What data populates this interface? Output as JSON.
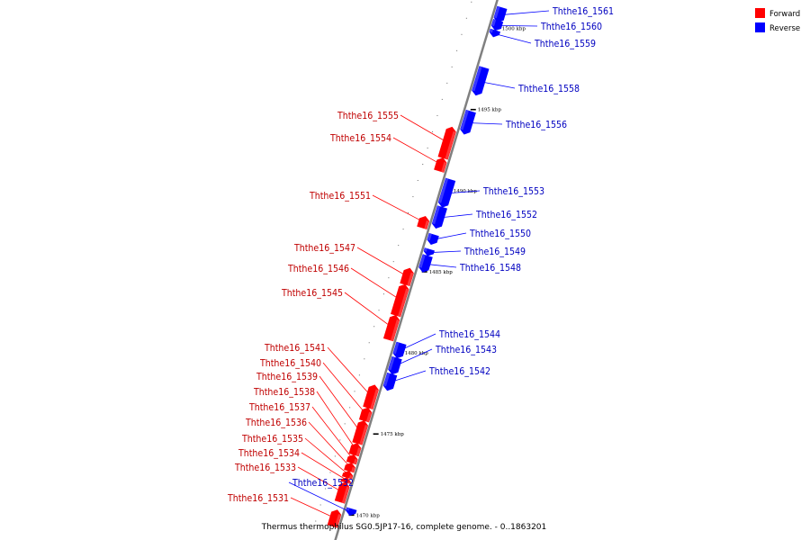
{
  "legend": {
    "forward": {
      "label": "Forward",
      "color": "#ff0000"
    },
    "reverse": {
      "label": "Reverse",
      "color": "#0000ff"
    }
  },
  "caption": "Thermus thermophilus SG0.5JP17-16, complete genome. - 0..1863201",
  "scale": {
    "unit": "kbp",
    "start": 1469.0,
    "end": 1501.3
  },
  "ticks": [
    {
      "label": "1500 kbp",
      "kbp": 1500
    },
    {
      "label": "1495 kbp",
      "kbp": 1495
    },
    {
      "label": "1490 kbp",
      "kbp": 1490
    },
    {
      "label": "1485 kbp",
      "kbp": 1485
    },
    {
      "label": "1480 kbp",
      "kbp": 1480
    },
    {
      "label": "1475 kbp",
      "kbp": 1475
    },
    {
      "label": "1470 kbp",
      "kbp": 1470
    }
  ],
  "genes": [
    {
      "name": "Ththe16_1561",
      "strand": "reverse",
      "start": 1500.3,
      "end": 1501.2
    },
    {
      "name": "Ththe16_1560",
      "strand": "reverse",
      "start": 1499.8,
      "end": 1500.4
    },
    {
      "name": "Ththe16_1559",
      "strand": "reverse",
      "start": 1499.4,
      "end": 1499.8
    },
    {
      "name": "Ththe16_1558",
      "strand": "reverse",
      "start": 1495.8,
      "end": 1497.5
    },
    {
      "name": "Ththe16_1556",
      "strand": "reverse",
      "start": 1493.4,
      "end": 1494.8
    },
    {
      "name": "Ththe16_1555",
      "strand": "forward",
      "start": 1491.7,
      "end": 1493.6
    },
    {
      "name": "Ththe16_1554",
      "strand": "forward",
      "start": 1490.9,
      "end": 1491.7
    },
    {
      "name": "Ththe16_1553",
      "strand": "reverse",
      "start": 1488.9,
      "end": 1490.6
    },
    {
      "name": "Ththe16_1552",
      "strand": "reverse",
      "start": 1487.6,
      "end": 1488.9
    },
    {
      "name": "Ththe16_1551",
      "strand": "forward",
      "start": 1487.4,
      "end": 1488.1
    },
    {
      "name": "Ththe16_1550",
      "strand": "reverse",
      "start": 1486.6,
      "end": 1487.2
    },
    {
      "name": "Ththe16_1549",
      "strand": "reverse",
      "start": 1485.9,
      "end": 1486.3
    },
    {
      "name": "Ththe16_1548",
      "strand": "reverse",
      "start": 1484.9,
      "end": 1485.9
    },
    {
      "name": "Ththe16_1547",
      "strand": "forward",
      "start": 1483.9,
      "end": 1484.9
    },
    {
      "name": "Ththe16_1546",
      "strand": "forward",
      "start": 1482.0,
      "end": 1483.9
    },
    {
      "name": "Ththe16_1545",
      "strand": "forward",
      "start": 1480.5,
      "end": 1482.0
    },
    {
      "name": "Ththe16_1544",
      "strand": "reverse",
      "start": 1479.6,
      "end": 1480.5
    },
    {
      "name": "Ththe16_1543",
      "strand": "reverse",
      "start": 1478.6,
      "end": 1479.6
    },
    {
      "name": "Ththe16_1542",
      "strand": "reverse",
      "start": 1477.6,
      "end": 1478.6
    },
    {
      "name": "Ththe16_1541",
      "strand": "forward",
      "start": 1476.3,
      "end": 1477.7
    },
    {
      "name": "Ththe16_1540",
      "strand": "forward",
      "start": 1475.5,
      "end": 1476.3
    },
    {
      "name": "Ththe16_1539",
      "strand": "forward",
      "start": 1474.1,
      "end": 1475.5
    },
    {
      "name": "Ththe16_1538",
      "strand": "forward",
      "start": 1473.4,
      "end": 1474.1
    },
    {
      "name": "Ththe16_1537",
      "strand": "forward",
      "start": 1472.9,
      "end": 1473.4
    },
    {
      "name": "Ththe16_1536",
      "strand": "forward",
      "start": 1472.4,
      "end": 1472.9
    },
    {
      "name": "Ththe16_1535",
      "strand": "forward",
      "start": 1472.0,
      "end": 1472.4
    },
    {
      "name": "Ththe16_1534",
      "strand": "forward",
      "start": 1471.7,
      "end": 1472.0
    },
    {
      "name": "Ththe16_1533",
      "strand": "forward",
      "start": 1470.5,
      "end": 1471.7
    },
    {
      "name": "Ththe16_1532",
      "strand": "reverse",
      "start": 1469.9,
      "end": 1470.3
    },
    {
      "name": "Ththe16_1531",
      "strand": "forward",
      "start": 1469.0,
      "end": 1470.0
    }
  ]
}
